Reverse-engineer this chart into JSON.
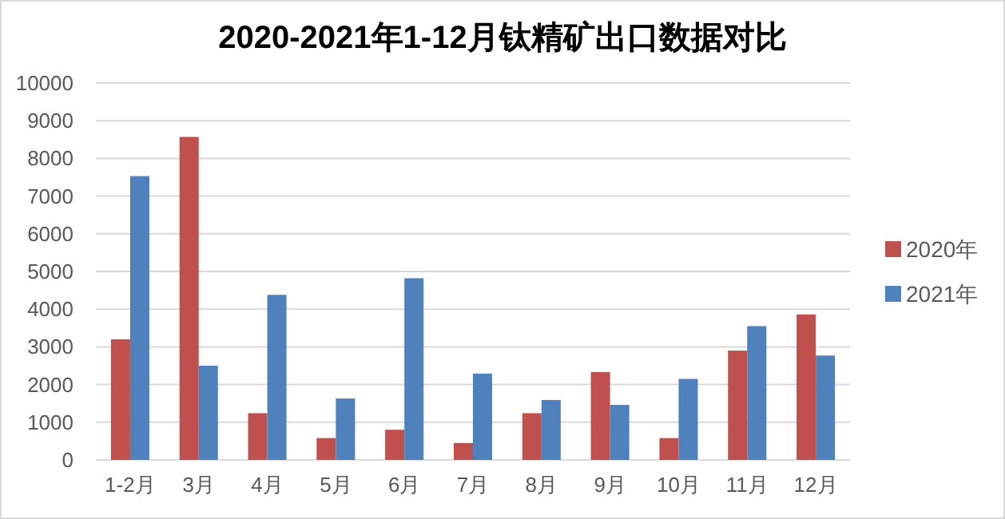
{
  "chart_data": {
    "type": "bar",
    "title": "2020-2021年1-12月钛精矿出口数据对比",
    "categories": [
      "1-2月",
      "3月",
      "4月",
      "5月",
      "6月",
      "7月",
      "8月",
      "9月",
      "10月",
      "11月",
      "12月"
    ],
    "series": [
      {
        "name": "2020年",
        "color": "#c0504d",
        "values": [
          3200,
          8570,
          1240,
          580,
          800,
          450,
          1240,
          2330,
          580,
          2900,
          3860
        ]
      },
      {
        "name": "2021年",
        "color": "#4f81bd",
        "values": [
          7530,
          2500,
          4380,
          1630,
          4820,
          2290,
          1590,
          1460,
          2150,
          3550,
          2770
        ]
      }
    ],
    "ylim": [
      0,
      10000
    ],
    "yticks": [
      0,
      1000,
      2000,
      3000,
      4000,
      5000,
      6000,
      7000,
      8000,
      9000,
      10000
    ],
    "grid": "y",
    "legend": "right"
  }
}
